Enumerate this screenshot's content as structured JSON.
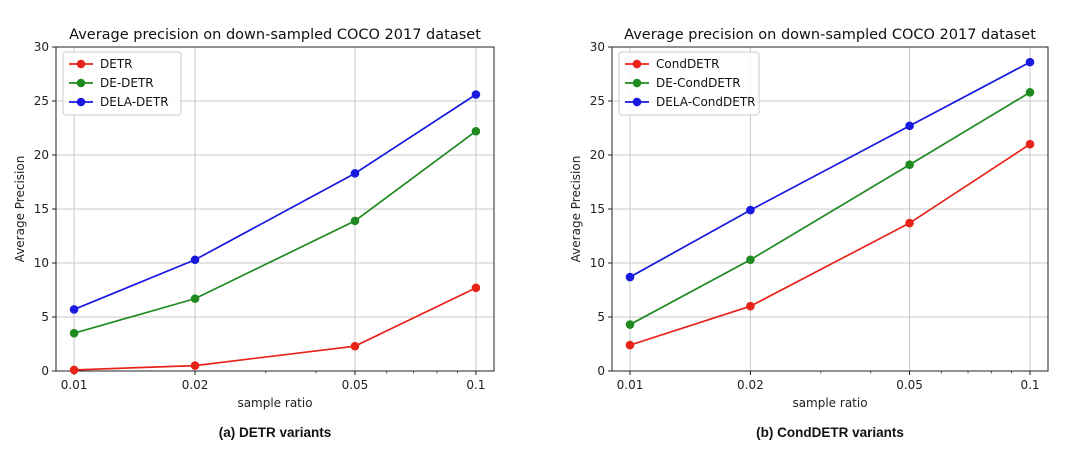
{
  "chart_data": [
    {
      "type": "line",
      "title": "Average precision on down-sampled COCO 2017 dataset",
      "xlabel": "sample ratio",
      "ylabel": "Average Precision",
      "caption": "(a) DETR variants",
      "xscale": "log",
      "x": [
        0.01,
        0.02,
        0.05,
        0.1
      ],
      "xtick_labels": [
        "0.01",
        "0.02",
        "0.05",
        "0.1"
      ],
      "ylim": [
        0,
        30
      ],
      "yticks": [
        0,
        5,
        10,
        15,
        20,
        25,
        30
      ],
      "grid": true,
      "legend": "top-left",
      "series": [
        {
          "name": "DETR",
          "color": "#e8231a",
          "values": [
            0.1,
            0.5,
            2.3,
            7.7
          ]
        },
        {
          "name": "DE-DETR",
          "color": "#1f8a1f",
          "values": [
            3.5,
            6.7,
            13.9,
            22.2
          ]
        },
        {
          "name": "DELA-DETR",
          "color": "#1818e0",
          "values": [
            5.7,
            10.3,
            18.3,
            25.6
          ]
        }
      ]
    },
    {
      "type": "line",
      "title": "Average precision on down-sampled COCO 2017 dataset",
      "xlabel": "sample ratio",
      "ylabel": "Average Precision",
      "caption": "(b) CondDETR variants",
      "xscale": "log",
      "x": [
        0.01,
        0.02,
        0.05,
        0.1
      ],
      "xtick_labels": [
        "0.01",
        "0.02",
        "0.05",
        "0.1"
      ],
      "ylim": [
        0,
        30
      ],
      "yticks": [
        0,
        5,
        10,
        15,
        20,
        25,
        30
      ],
      "grid": true,
      "legend": "top-left",
      "series": [
        {
          "name": "CondDETR",
          "color": "#e8231a",
          "values": [
            2.4,
            6.0,
            13.7,
            21.0
          ]
        },
        {
          "name": "DE-CondDETR",
          "color": "#1f8a1f",
          "values": [
            4.3,
            10.3,
            19.1,
            25.8
          ]
        },
        {
          "name": "DELA-CondDETR",
          "color": "#1818e0",
          "values": [
            8.7,
            14.9,
            22.7,
            28.6
          ]
        }
      ]
    }
  ]
}
